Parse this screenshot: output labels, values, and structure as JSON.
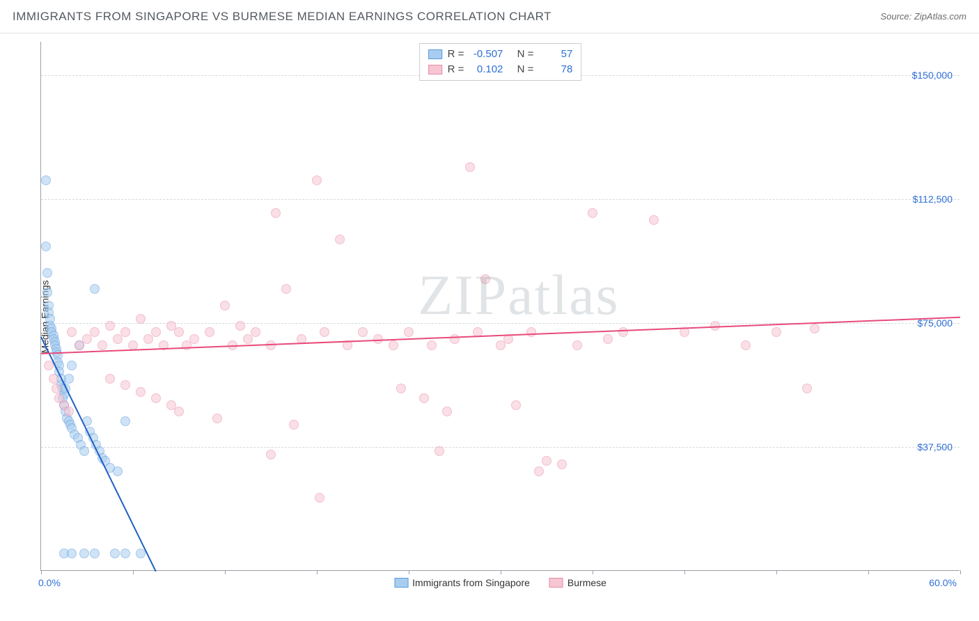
{
  "header": {
    "title": "IMMIGRANTS FROM SINGAPORE VS BURMESE MEDIAN EARNINGS CORRELATION CHART",
    "source_prefix": "Source: ",
    "source_name": "ZipAtlas.com"
  },
  "watermark": {
    "part1": "ZIP",
    "part2": "atlas"
  },
  "chart": {
    "type": "scatter",
    "ylabel": "Median Earnings",
    "xlim": [
      0,
      60
    ],
    "ylim": [
      0,
      160000
    ],
    "x_ticks": [
      0,
      6,
      12,
      18,
      24,
      30,
      36,
      42,
      48,
      54,
      60
    ],
    "x_min_label": "0.0%",
    "x_max_label": "60.0%",
    "y_gridlines": [
      37500,
      75000,
      112500,
      150000
    ],
    "y_tick_labels": [
      "$37,500",
      "$75,000",
      "$112,500",
      "$150,000"
    ],
    "grid_color": "#d5d8dc",
    "axis_color": "#9aa0a6",
    "background_color": "#ffffff",
    "tick_label_color": "#2c6fd6",
    "marker_radius": 7,
    "marker_opacity": 0.55,
    "series": [
      {
        "name": "Immigrants from Singapore",
        "fill_color": "#a9cdf0",
        "stroke_color": "#5a9bdc",
        "trend_color": "#1f5fc4",
        "R": "-0.507",
        "N": "57",
        "trend": {
          "x1": 0,
          "y1": 71000,
          "x2": 7.5,
          "y2": 0
        },
        "points": [
          [
            0.3,
            118000
          ],
          [
            0.3,
            98000
          ],
          [
            0.4,
            90000
          ],
          [
            0.4,
            84000
          ],
          [
            0.5,
            80000
          ],
          [
            0.5,
            78000
          ],
          [
            0.6,
            76000
          ],
          [
            0.6,
            74000
          ],
          [
            0.7,
            73000
          ],
          [
            0.7,
            72000
          ],
          [
            0.8,
            71000
          ],
          [
            0.8,
            70000
          ],
          [
            0.9,
            69000
          ],
          [
            0.9,
            68000
          ],
          [
            1.0,
            67000
          ],
          [
            1.0,
            66000
          ],
          [
            1.1,
            65000
          ],
          [
            1.1,
            63000
          ],
          [
            1.2,
            62000
          ],
          [
            1.2,
            60000
          ],
          [
            1.3,
            58000
          ],
          [
            1.3,
            56000
          ],
          [
            1.4,
            55000
          ],
          [
            1.5,
            53000
          ],
          [
            1.5,
            50000
          ],
          [
            1.6,
            48000
          ],
          [
            1.7,
            46000
          ],
          [
            1.8,
            45000
          ],
          [
            1.9,
            44000
          ],
          [
            2.0,
            43000
          ],
          [
            2.2,
            41000
          ],
          [
            2.4,
            40000
          ],
          [
            2.6,
            38000
          ],
          [
            2.8,
            36000
          ],
          [
            3.0,
            45000
          ],
          [
            3.2,
            42000
          ],
          [
            3.4,
            40000
          ],
          [
            3.6,
            38000
          ],
          [
            3.8,
            36000
          ],
          [
            4.0,
            34000
          ],
          [
            4.2,
            33000
          ],
          [
            4.5,
            31000
          ],
          [
            5.0,
            30000
          ],
          [
            3.5,
            85000
          ],
          [
            2.5,
            68000
          ],
          [
            2.0,
            62000
          ],
          [
            1.8,
            58000
          ],
          [
            1.6,
            55000
          ],
          [
            1.4,
            52000
          ],
          [
            5.5,
            45000
          ],
          [
            1.5,
            5000
          ],
          [
            2.0,
            5000
          ],
          [
            2.8,
            5000
          ],
          [
            3.5,
            5000
          ],
          [
            4.8,
            5000
          ],
          [
            5.5,
            5000
          ],
          [
            6.5,
            5000
          ]
        ]
      },
      {
        "name": "Burmese",
        "fill_color": "#f6c6d2",
        "stroke_color": "#e88ba5",
        "trend_color": "#e84a7a",
        "R": "0.102",
        "N": "78",
        "trend": {
          "x1": 0,
          "y1": 66000,
          "x2": 60,
          "y2": 77000
        },
        "points": [
          [
            0.5,
            62000
          ],
          [
            0.8,
            58000
          ],
          [
            1.0,
            55000
          ],
          [
            1.2,
            52000
          ],
          [
            1.5,
            50000
          ],
          [
            1.8,
            48000
          ],
          [
            2.0,
            72000
          ],
          [
            2.5,
            68000
          ],
          [
            3.0,
            70000
          ],
          [
            3.5,
            72000
          ],
          [
            4.0,
            68000
          ],
          [
            4.5,
            74000
          ],
          [
            5.0,
            70000
          ],
          [
            5.5,
            72000
          ],
          [
            6.0,
            68000
          ],
          [
            6.5,
            76000
          ],
          [
            7.0,
            70000
          ],
          [
            7.5,
            72000
          ],
          [
            8.0,
            68000
          ],
          [
            8.5,
            74000
          ],
          [
            9.0,
            72000
          ],
          [
            9.5,
            68000
          ],
          [
            10.0,
            70000
          ],
          [
            11.0,
            72000
          ],
          [
            12.0,
            80000
          ],
          [
            12.5,
            68000
          ],
          [
            13.0,
            74000
          ],
          [
            13.5,
            70000
          ],
          [
            14.0,
            72000
          ],
          [
            15.0,
            68000
          ],
          [
            15.3,
            108000
          ],
          [
            16.0,
            85000
          ],
          [
            16.5,
            44000
          ],
          [
            17.0,
            70000
          ],
          [
            18.0,
            118000
          ],
          [
            18.5,
            72000
          ],
          [
            18.2,
            22000
          ],
          [
            19.5,
            100000
          ],
          [
            20.0,
            68000
          ],
          [
            21.0,
            72000
          ],
          [
            22.0,
            70000
          ],
          [
            23.0,
            68000
          ],
          [
            23.5,
            55000
          ],
          [
            24.0,
            72000
          ],
          [
            25.0,
            52000
          ],
          [
            25.5,
            68000
          ],
          [
            26.0,
            36000
          ],
          [
            26.5,
            48000
          ],
          [
            27.0,
            70000
          ],
          [
            28.0,
            122000
          ],
          [
            28.5,
            72000
          ],
          [
            29.0,
            88000
          ],
          [
            30.0,
            68000
          ],
          [
            30.5,
            70000
          ],
          [
            31.0,
            50000
          ],
          [
            32.0,
            72000
          ],
          [
            32.5,
            30000
          ],
          [
            33.0,
            33000
          ],
          [
            34.0,
            32000
          ],
          [
            35.0,
            68000
          ],
          [
            36.0,
            108000
          ],
          [
            37.0,
            70000
          ],
          [
            38.0,
            72000
          ],
          [
            40.0,
            106000
          ],
          [
            42.0,
            72000
          ],
          [
            44.0,
            74000
          ],
          [
            46.0,
            68000
          ],
          [
            48.0,
            72000
          ],
          [
            50.0,
            55000
          ],
          [
            50.5,
            73000
          ],
          [
            15.0,
            35000
          ],
          [
            11.5,
            46000
          ],
          [
            9.0,
            48000
          ],
          [
            8.5,
            50000
          ],
          [
            7.5,
            52000
          ],
          [
            6.5,
            54000
          ],
          [
            5.5,
            56000
          ],
          [
            4.5,
            58000
          ]
        ]
      }
    ],
    "legend": {
      "series1_label": "Immigrants from Singapore",
      "series2_label": "Burmese"
    },
    "stat_legend": {
      "r_label": "R =",
      "n_label": "N ="
    }
  }
}
